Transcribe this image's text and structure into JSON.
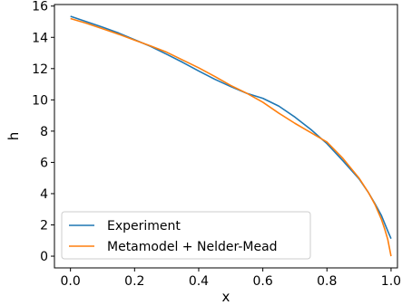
{
  "chart_data": {
    "type": "line",
    "title": "",
    "xlabel": "x",
    "ylabel": "h",
    "xlim": [
      -0.05,
      1.02
    ],
    "ylim": [
      -0.75,
      16.1
    ],
    "xticks": [
      0.0,
      0.2,
      0.4,
      0.6,
      0.8,
      1.0
    ],
    "xtick_labels": [
      "0.0",
      "0.2",
      "0.4",
      "0.6",
      "0.8",
      "1.0"
    ],
    "yticks": [
      0,
      2,
      4,
      6,
      8,
      10,
      12,
      14,
      16
    ],
    "ytick_labels": [
      "0",
      "2",
      "4",
      "6",
      "8",
      "10",
      "12",
      "14",
      "16"
    ],
    "grid": false,
    "legend_position": "lower-left",
    "series": [
      {
        "name": "Experiment",
        "color": "#1f77b4",
        "x": [
          0.0,
          0.05,
          0.1,
          0.15,
          0.2,
          0.25,
          0.3,
          0.35,
          0.4,
          0.45,
          0.5,
          0.55,
          0.6,
          0.65,
          0.7,
          0.75,
          0.8,
          0.85,
          0.9,
          0.93,
          0.95,
          0.97,
          0.98,
          0.99,
          1.0
        ],
        "y": [
          15.35,
          15.0,
          14.65,
          14.28,
          13.85,
          13.42,
          12.92,
          12.4,
          11.85,
          11.32,
          10.85,
          10.42,
          10.1,
          9.6,
          8.9,
          8.1,
          7.2,
          6.1,
          4.95,
          4.05,
          3.35,
          2.6,
          2.1,
          1.6,
          1.12
        ]
      },
      {
        "name": "Metamodel + Nelder-Mead",
        "color": "#ff7f0e",
        "x": [
          0.0,
          0.05,
          0.1,
          0.15,
          0.2,
          0.25,
          0.3,
          0.35,
          0.4,
          0.45,
          0.5,
          0.55,
          0.6,
          0.65,
          0.7,
          0.75,
          0.8,
          0.85,
          0.9,
          0.93,
          0.95,
          0.97,
          0.98,
          0.99,
          1.0
        ],
        "y": [
          15.2,
          14.9,
          14.55,
          14.2,
          13.82,
          13.45,
          13.05,
          12.55,
          12.05,
          11.5,
          10.92,
          10.42,
          9.85,
          9.15,
          8.5,
          7.9,
          7.3,
          6.25,
          5.0,
          4.05,
          3.3,
          2.35,
          1.75,
          1.05,
          0.0
        ]
      }
    ]
  }
}
